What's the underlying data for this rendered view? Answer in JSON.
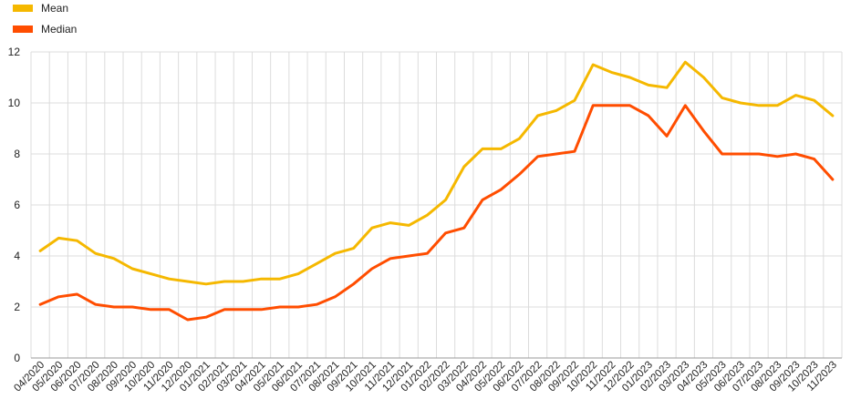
{
  "chart_data": {
    "type": "line",
    "x": [
      "04/2020",
      "05/2020",
      "06/2020",
      "07/2020",
      "08/2020",
      "09/2020",
      "10/2020",
      "11/2020",
      "12/2020",
      "01/2021",
      "02/2021",
      "03/2021",
      "04/2021",
      "05/2021",
      "06/2021",
      "07/2021",
      "08/2021",
      "09/2021",
      "10/2021",
      "11/2021",
      "12/2021",
      "01/2022",
      "02/2022",
      "03/2022",
      "04/2022",
      "05/2022",
      "06/2022",
      "07/2022",
      "08/2022",
      "09/2022",
      "10/2022",
      "11/2022",
      "12/2022",
      "01/2023",
      "02/2023",
      "03/2023",
      "04/2023",
      "05/2023",
      "06/2023",
      "07/2023",
      "08/2023",
      "09/2023",
      "10/2023",
      "11/2023"
    ],
    "series": [
      {
        "name": "Mean",
        "color": "#f5b800",
        "values": [
          4.2,
          4.7,
          4.6,
          4.1,
          3.9,
          3.5,
          3.3,
          3.1,
          3.0,
          2.9,
          3.0,
          3.0,
          3.1,
          3.1,
          3.3,
          3.7,
          4.1,
          4.3,
          5.1,
          5.3,
          5.2,
          5.6,
          6.2,
          7.5,
          8.2,
          8.2,
          8.6,
          9.5,
          9.7,
          10.1,
          11.5,
          11.2,
          11.0,
          10.7,
          10.6,
          11.6,
          11.0,
          10.2,
          10.0,
          9.9,
          9.9,
          10.3,
          10.1,
          9.5
        ]
      },
      {
        "name": "Median",
        "color": "#ff4d00",
        "values": [
          2.1,
          2.4,
          2.5,
          2.1,
          2.0,
          2.0,
          1.9,
          1.9,
          1.5,
          1.6,
          1.9,
          1.9,
          1.9,
          2.0,
          2.0,
          2.1,
          2.4,
          2.9,
          3.5,
          3.9,
          4.0,
          4.1,
          4.9,
          5.1,
          6.2,
          6.6,
          7.2,
          7.9,
          8.0,
          8.1,
          9.9,
          9.9,
          9.9,
          9.5,
          8.7,
          9.9,
          8.9,
          8.0,
          8.0,
          8.0,
          7.9,
          8.0,
          7.8,
          7.0
        ]
      }
    ],
    "yticks": [
      "0",
      "2",
      "4",
      "6",
      "8",
      "10",
      "12"
    ],
    "ylim": [
      0,
      12
    ],
    "grid": true,
    "legend_position": "top-left"
  }
}
